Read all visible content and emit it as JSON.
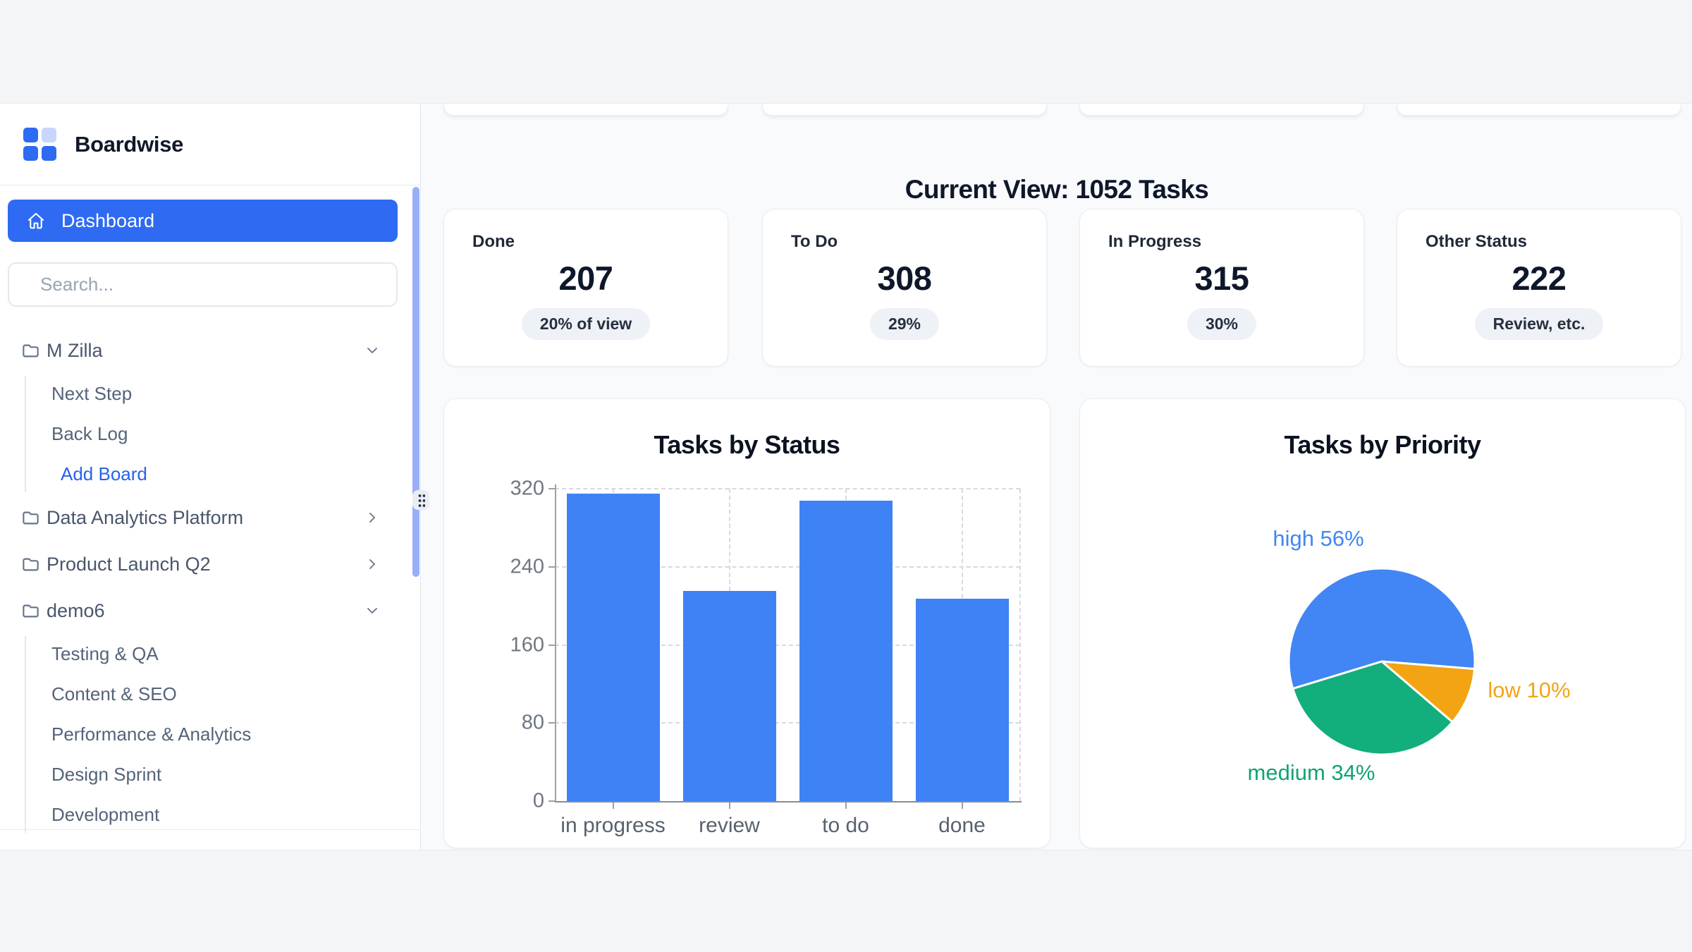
{
  "app_title": "Boardwise",
  "sidebar": {
    "logo_icon": "grid-2x2-logo",
    "dashboard": {
      "label": "Dashboard",
      "icon": "home-icon"
    },
    "search": {
      "placeholder": "Search..."
    },
    "projects": [
      {
        "label": "M Zilla",
        "icon": "folder-icon",
        "chevron": "chevron-down-icon",
        "children": [
          "Next Step",
          "Back Log"
        ],
        "action": "Add Board"
      },
      {
        "label": "Data Analytics Platform",
        "icon": "folder-icon",
        "chevron": "chevron-right-icon",
        "children": []
      },
      {
        "label": "Product Launch Q2",
        "icon": "folder-icon",
        "chevron": "chevron-right-icon",
        "children": []
      },
      {
        "label": "demo6",
        "icon": "folder-icon",
        "chevron": "chevron-down-icon",
        "children": [
          "Testing & QA",
          "Content & SEO",
          "Performance & Analytics",
          "Design Sprint",
          "Development"
        ]
      }
    ],
    "resize_handle_icon": "grip-dots-icon",
    "scrollbar_color": "#9aaef9"
  },
  "main": {
    "heading": "Current View: 1052 Tasks",
    "stat_cards": [
      {
        "label": "Done",
        "value": "207",
        "badge": "20% of view"
      },
      {
        "label": "To Do",
        "value": "308",
        "badge": "29%"
      },
      {
        "label": "In Progress",
        "value": "315",
        "badge": "30%"
      },
      {
        "label": "Other Status",
        "value": "222",
        "badge": "Review, etc."
      }
    ]
  },
  "chart_data": [
    {
      "type": "bar",
      "title": "Tasks by Status",
      "categories": [
        "in progress",
        "review",
        "to do",
        "done"
      ],
      "values": [
        315,
        215,
        308,
        207
      ],
      "xlabel": "",
      "ylabel": "",
      "ylim": [
        0,
        320
      ],
      "yticks": [
        0,
        80,
        160,
        240,
        320
      ],
      "grid": "dashed",
      "legend": "none",
      "bar_color": "#3e82f5"
    },
    {
      "type": "pie",
      "title": "Tasks by Priority",
      "slices": [
        {
          "label": "high",
          "pct": 56,
          "color": "#4285f4",
          "label_color": "#4285f4"
        },
        {
          "label": "low",
          "pct": 10,
          "color": "#f2a413",
          "label_color": "#f5a314"
        },
        {
          "label": "medium",
          "pct": 34,
          "color": "#13ae7d",
          "label_color": "#10a56f"
        }
      ],
      "start_angle_deg": 253,
      "label_format": "{label} {pct}%",
      "legend": "outside-labels"
    }
  ],
  "colors": {
    "accent_blue": "#2e6af2",
    "bar_blue": "#3e82f5",
    "page_band": "#f4f5f7",
    "main_bg": "#f8fafc",
    "add_board_link": "#2563eb"
  }
}
